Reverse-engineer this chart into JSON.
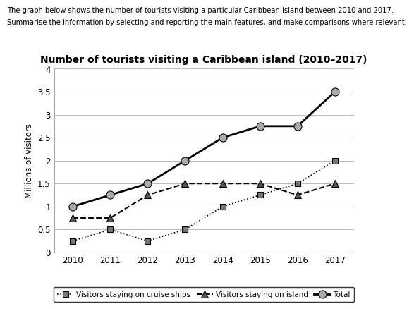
{
  "title": "Number of tourists visiting a Caribbean island (2010–2017)",
  "header_line1": "The graph below shows the number of tourists visiting a particular Caribbean island between 2010 and 2017.",
  "header_line2": "Summarise the information by selecting and reporting the main features, and make comparisons where relevant.",
  "ylabel": "Millions of visitors",
  "years": [
    2010,
    2011,
    2012,
    2013,
    2014,
    2015,
    2016,
    2017
  ],
  "cruise_ships": [
    0.25,
    0.5,
    0.25,
    0.5,
    1.0,
    1.25,
    1.5,
    2.0
  ],
  "on_island": [
    0.75,
    0.75,
    1.25,
    1.5,
    1.5,
    1.5,
    1.25,
    1.5
  ],
  "total": [
    1.0,
    1.25,
    1.5,
    2.0,
    2.5,
    2.75,
    2.75,
    3.5
  ],
  "ylim": [
    0,
    4
  ],
  "yticks": [
    0,
    0.5,
    1.0,
    1.5,
    2.0,
    2.5,
    3.0,
    3.5,
    4.0
  ],
  "ytick_labels": [
    "0",
    "0.5",
    "1",
    "1.5",
    "2",
    "2.5",
    "3",
    "3.5",
    "4"
  ],
  "legend_cruise": "Visitors staying on cruise ships",
  "legend_island": "Visitors staying on island",
  "legend_total": "Total",
  "bg_color": "#ffffff",
  "grid_color": "#bbbbbb",
  "line_color": "#000000"
}
